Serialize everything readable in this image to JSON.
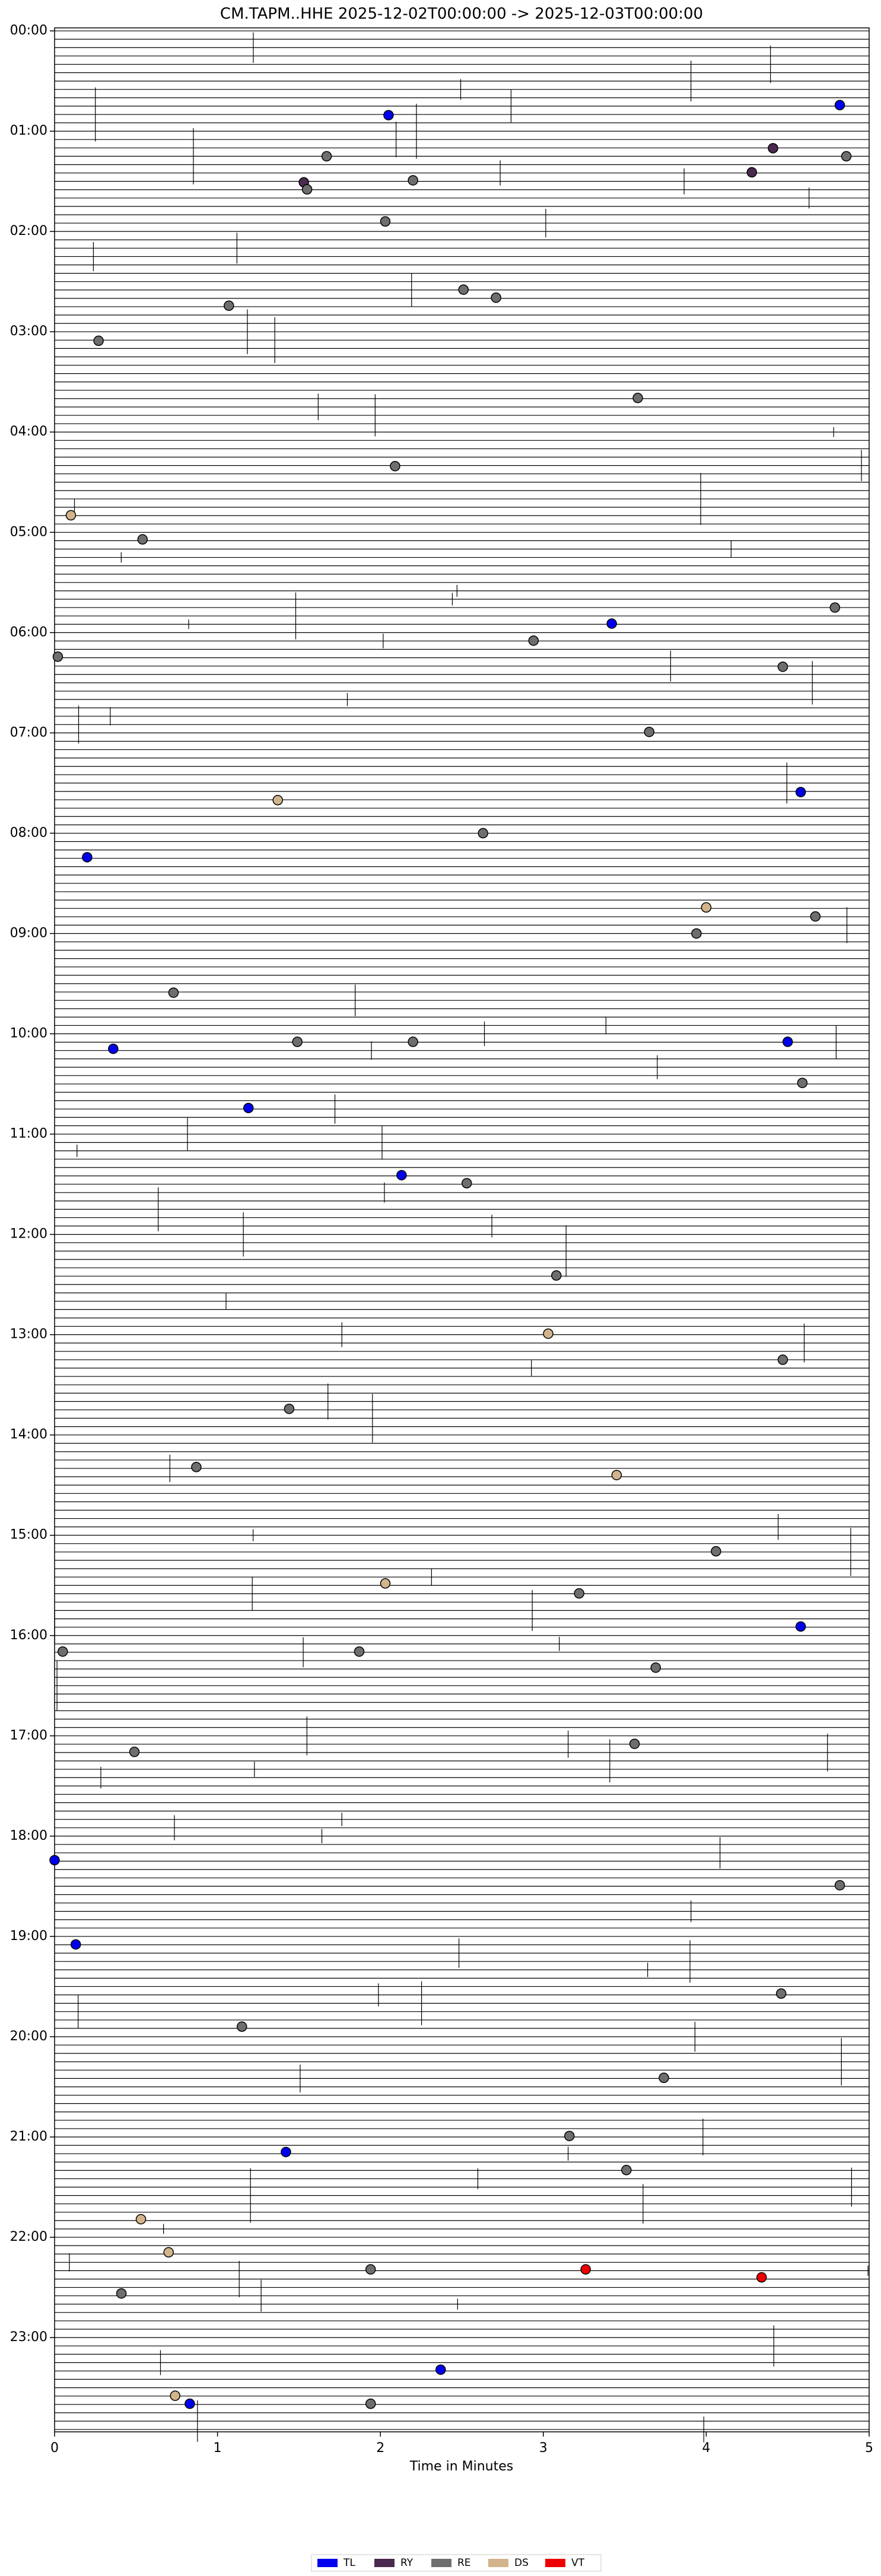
{
  "chart_data": {
    "type": "scatter",
    "title": "CM.TAPM..HHE  2025-12-02T00:00:00 -> 2025-12-03T00:00:00",
    "xlabel": "Time in Minutes",
    "xlim": [
      0,
      5
    ],
    "xticks": [
      0,
      1,
      2,
      3,
      4,
      5
    ],
    "ylim": [
      -0.03,
      23.94
    ],
    "yticks": [
      {
        "value": 0,
        "label": "00:00"
      },
      {
        "value": 1,
        "label": "01:00"
      },
      {
        "value": 2,
        "label": "02:00"
      },
      {
        "value": 3,
        "label": "03:00"
      },
      {
        "value": 4,
        "label": "04:00"
      },
      {
        "value": 5,
        "label": "05:00"
      },
      {
        "value": 6,
        "label": "06:00"
      },
      {
        "value": 7,
        "label": "07:00"
      },
      {
        "value": 8,
        "label": "08:00"
      },
      {
        "value": 9,
        "label": "09:00"
      },
      {
        "value": 10,
        "label": "10:00"
      },
      {
        "value": 11,
        "label": "11:00"
      },
      {
        "value": 12,
        "label": "12:00"
      },
      {
        "value": 13,
        "label": "13:00"
      },
      {
        "value": 14,
        "label": "14:00"
      },
      {
        "value": 15,
        "label": "15:00"
      },
      {
        "value": 16,
        "label": "16:00"
      },
      {
        "value": 17,
        "label": "17:00"
      },
      {
        "value": 18,
        "label": "18:00"
      },
      {
        "value": 19,
        "label": "19:00"
      },
      {
        "value": 20,
        "label": "20:00"
      },
      {
        "value": 21,
        "label": "21:00"
      },
      {
        "value": 22,
        "label": "22:00"
      },
      {
        "value": 23,
        "label": "23:00"
      }
    ],
    "legend": "bottom",
    "series": [
      {
        "name": "TL",
        "color": "#0000ee",
        "x": [
          2.05,
          4.82,
          3.42,
          4.58,
          0.2,
          0.36,
          4.5,
          1.19,
          2.13,
          4.58,
          0.0,
          0.13,
          1.42,
          2.37,
          0.83
        ],
        "values": [
          0.84,
          0.74,
          5.91,
          7.59,
          8.24,
          10.15,
          10.08,
          10.74,
          11.41,
          15.91,
          18.24,
          19.08,
          21.15,
          23.32,
          23.66
        ]
      },
      {
        "name": "RY",
        "color": "#4b2a4f",
        "x": [
          4.28,
          4.41,
          1.53
        ],
        "values": [
          1.41,
          1.17,
          1.51
        ]
      },
      {
        "name": "RE",
        "color": "#6e6e6e",
        "x": [
          1.67,
          4.86,
          1.55,
          2.2,
          2.03,
          2.51,
          2.71,
          1.07,
          0.27,
          3.58,
          2.09,
          0.54,
          4.79,
          0.02,
          2.94,
          4.47,
          3.65,
          2.63,
          4.67,
          3.94,
          0.73,
          1.49,
          2.2,
          4.59,
          2.53,
          3.08,
          4.47,
          1.44,
          0.87,
          4.06,
          3.22,
          1.87,
          0.05,
          3.69,
          3.56,
          0.49,
          4.82,
          4.46,
          1.15,
          3.74,
          3.16,
          3.51,
          1.94,
          0.41,
          1.94
        ],
        "values": [
          1.25,
          1.25,
          1.58,
          1.49,
          1.9,
          2.58,
          2.66,
          2.74,
          3.09,
          3.66,
          4.34,
          5.07,
          5.75,
          6.24,
          6.08,
          6.34,
          6.99,
          8.0,
          8.83,
          9.0,
          9.59,
          10.08,
          10.08,
          10.49,
          11.49,
          12.41,
          13.25,
          13.74,
          14.32,
          15.16,
          15.58,
          16.16,
          16.16,
          16.32,
          17.08,
          17.16,
          18.49,
          19.57,
          19.9,
          20.41,
          20.99,
          21.33,
          22.32,
          22.56,
          23.66
        ]
      },
      {
        "name": "DS",
        "color": "#d2b48c",
        "x": [
          0.1,
          1.37,
          4.0,
          3.03,
          3.45,
          2.03,
          0.53,
          0.7,
          0.74
        ],
        "values": [
          4.83,
          7.67,
          8.74,
          12.99,
          14.4,
          15.48,
          21.82,
          22.15,
          23.58
        ]
      },
      {
        "name": "VT",
        "color": "#ee0000",
        "x": [
          3.26,
          4.34
        ],
        "values": [
          22.32,
          22.4
        ]
      }
    ]
  }
}
